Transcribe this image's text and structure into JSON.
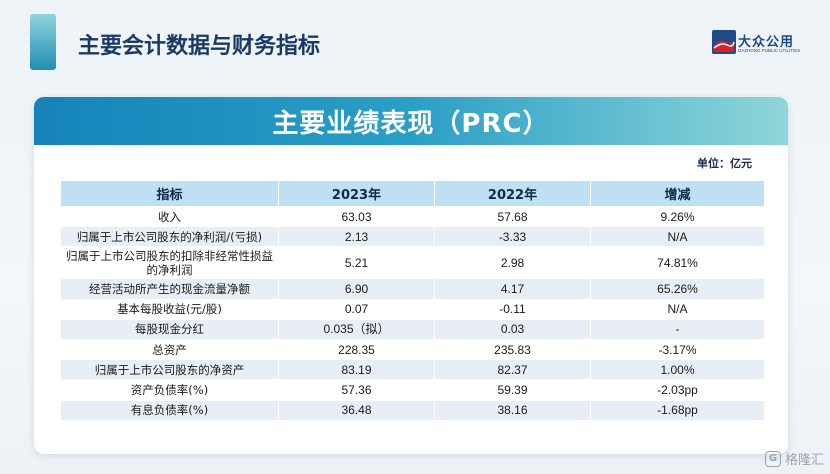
{
  "header": {
    "title": "主要会计数据与财务指标",
    "logo_cn": "大众公用",
    "logo_en": "DAZHONG PUBLIC UTILITIES"
  },
  "card": {
    "title": "主要业绩表现（PRC）",
    "unit": "单位：亿元"
  },
  "table": {
    "headers": [
      "指标",
      "2023年",
      "2022年",
      "增减"
    ],
    "rows": [
      [
        "收入",
        "63.03",
        "57.68",
        "9.26%"
      ],
      [
        "归属于上市公司股东的净利润/(亏损)",
        "2.13",
        "-3.33",
        "N/A"
      ],
      [
        "归属于上市公司股东的扣除非经常性损益的净利润",
        "5.21",
        "2.98",
        "74.81%"
      ],
      [
        "经营活动所产生的现金流量净额",
        "6.90",
        "4.17",
        "65.26%"
      ],
      [
        "基本每股收益(元/股)",
        "0.07",
        "-0.11",
        "N/A"
      ],
      [
        "每股现金分红",
        "0.035（拟）",
        "0.03",
        "-"
      ],
      [
        "总资产",
        "228.35",
        "235.83",
        "-3.17%"
      ],
      [
        "归属于上市公司股东的净资产",
        "83.19",
        "82.37",
        "1.00%"
      ],
      [
        "资产负债率(%)",
        "57.36",
        "59.39",
        "-2.03pp"
      ],
      [
        "有息负债率(%)",
        "36.48",
        "38.16",
        "-1.68pp"
      ]
    ]
  },
  "watermark": {
    "icon": "G",
    "text": "格隆汇"
  },
  "colors": {
    "header_gradient_start": "#1583b8",
    "header_gradient_end": "#8fd6d8",
    "table_header_bg": "#bde0f2",
    "row_alt_bg": "#e8eef5",
    "title_color": "#1a3a66"
  }
}
